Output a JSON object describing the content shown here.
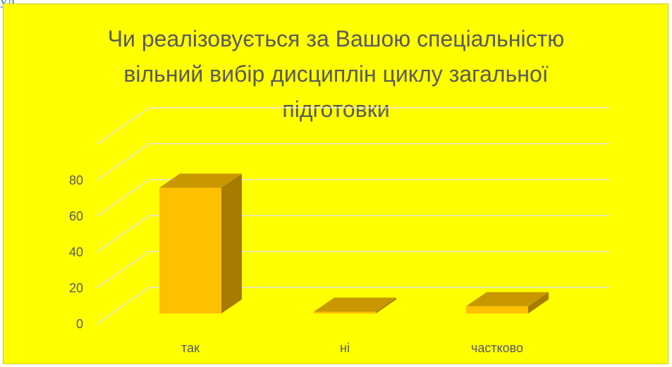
{
  "page": {
    "corner_text": "уд"
  },
  "chart_data": {
    "type": "bar",
    "style": "3d-column",
    "title_lines": [
      "Чи реалізовується за Вашою спеціальністю",
      "вільний вибір дисциплін циклу загальної",
      "підготовки"
    ],
    "categories": [
      "так",
      "ні",
      "частково"
    ],
    "values": [
      70,
      1,
      4
    ],
    "y_ticks": [
      0,
      20,
      40,
      60,
      80
    ],
    "ylim": [
      0,
      100
    ],
    "grid": true,
    "legend": "none",
    "colors": {
      "background": "#ffff00",
      "bar_front": "#ffc000",
      "bar_top": "#c99700",
      "bar_side": "#a77a00",
      "gridline": "#e6e6e6",
      "text": "#595959"
    }
  }
}
